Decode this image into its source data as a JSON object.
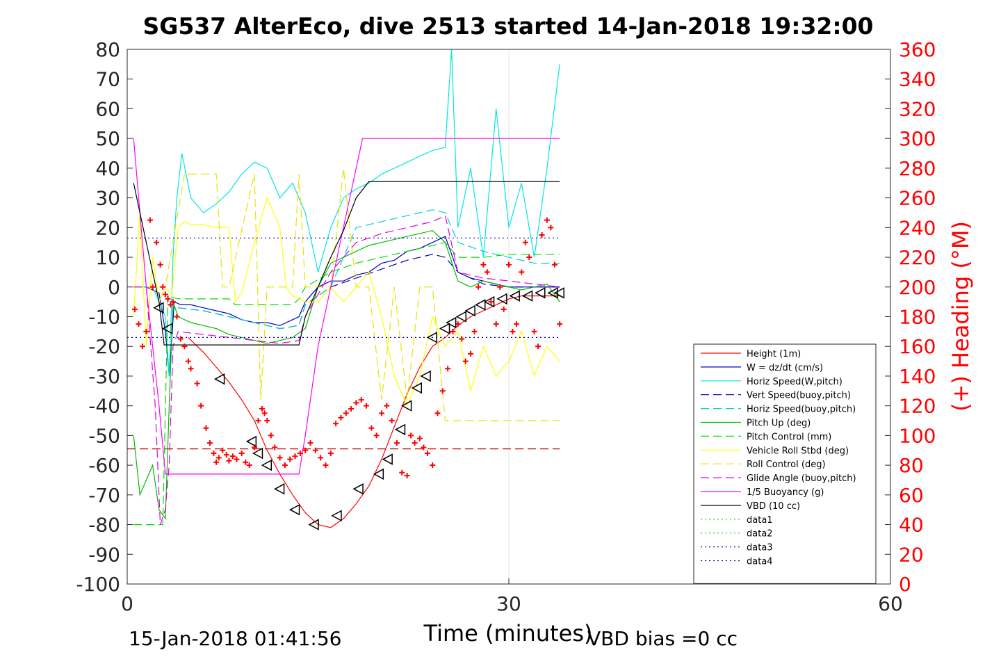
{
  "chart_data": {
    "type": "line",
    "title": "SG537 AlterEco, dive 2513 started 14-Jan-2018 19:32:00",
    "xlabel": "Time (minutes)",
    "ylabel_right": "(+) Heading (°M)",
    "footer_left": "15-Jan-2018 01:41:56",
    "footer_right": "VBD bias =0 cc",
    "xlim": [
      0,
      60
    ],
    "ylim_left": [
      -100,
      80
    ],
    "ylim_right": [
      0,
      360
    ],
    "x_ticks": [
      0,
      30,
      60
    ],
    "x_tick_labels": [
      "0",
      "30",
      "60"
    ],
    "y_left_ticks": [
      80,
      70,
      60,
      50,
      40,
      30,
      20,
      10,
      0,
      -10,
      -20,
      -30,
      -40,
      -50,
      -60,
      -70,
      -80,
      -90,
      -100
    ],
    "y_left_tick_labels": [
      "80",
      "70",
      "60",
      "50",
      "40",
      "30",
      "20",
      "10",
      "0",
      "-10",
      "-20",
      "-30",
      "-40",
      "-50",
      "-60",
      "-70",
      "-80",
      "-90",
      "-100"
    ],
    "y_right_ticks": [
      360,
      340,
      320,
      300,
      280,
      260,
      240,
      220,
      200,
      180,
      160,
      140,
      120,
      100,
      80,
      60,
      40,
      20,
      0
    ],
    "y_right_tick_labels": [
      "360",
      "340",
      "320",
      "300",
      "280",
      "260",
      "240",
      "220",
      "200",
      "180",
      "160",
      "140",
      "120",
      "100",
      "80",
      "60",
      "40",
      "20",
      "0"
    ],
    "grid": "x at 30",
    "legend_position": "bottom-right",
    "series": [
      {
        "name": "Height (1m)",
        "color": "#ff0000",
        "style": "solid",
        "x": [
          4.8,
          6.0,
          7.0,
          8.0,
          9.0,
          10.0,
          11.0,
          12.0,
          13.0,
          14.0,
          15.0,
          16.0,
          17.0,
          18.0,
          19.0,
          20.0,
          21.0,
          22.0,
          23.0,
          24.0,
          25.0,
          25.5,
          26.0,
          27.0,
          28.0,
          29.0,
          30.0,
          31.0,
          32.0,
          33.0,
          34.0
        ],
        "y": [
          -17,
          -22,
          -27,
          -32,
          -38,
          -45,
          -55,
          -63,
          -70,
          -76,
          -80,
          -81,
          -78,
          -73,
          -67,
          -58,
          -47,
          -36,
          -27,
          -20,
          -17,
          -15,
          -13,
          -10,
          -8,
          -6,
          -4,
          -3,
          -3,
          -3,
          -3
        ]
      },
      {
        "name": "W = dz/dt (cm/s)",
        "color": "#0000cc",
        "style": "solid",
        "x": [
          0.5,
          1.5,
          2.5,
          3.0,
          3.3,
          3.7,
          4.2,
          5.0,
          6.0,
          7.0,
          8.0,
          9.0,
          10.0,
          11.0,
          12.0,
          13.0,
          13.5,
          14.0,
          15.0,
          16.0,
          17.0,
          18.0,
          19.0,
          20.0,
          21.0,
          22.0,
          23.0,
          24.0,
          25.0,
          26.0,
          27.0,
          28.0,
          29.0,
          30.0,
          31.0,
          32.0,
          33.0,
          34.0
        ],
        "y": [
          0,
          0,
          -2,
          -15,
          -30,
          -5,
          -6,
          -6,
          -7,
          -8,
          -9,
          -11,
          -12,
          -12,
          -13,
          -11,
          -10,
          -5,
          0,
          2,
          2,
          4,
          5,
          8,
          9,
          12,
          13,
          15,
          17,
          5,
          3,
          2,
          1,
          0,
          0,
          0,
          0,
          0
        ]
      },
      {
        "name": "Horiz Speed(W,pitch)",
        "color": "#00e5e5",
        "style": "solid",
        "x": [
          0.5,
          2.0,
          3.0,
          3.3,
          3.6,
          3.9,
          4.3,
          5.0,
          6.0,
          7.0,
          8.0,
          9.0,
          10.0,
          11.0,
          12.0,
          13.0,
          14.0,
          15.0,
          16.0,
          17.0,
          18.0,
          19.0,
          20.0,
          21.0,
          22.0,
          23.0,
          24.0,
          25.0,
          25.5,
          26.0,
          27.0,
          28.0,
          29.0,
          30.0,
          31.0,
          32.0,
          33.0,
          34.0
        ],
        "y": [
          0,
          0,
          -10,
          -30,
          10,
          30,
          45,
          30,
          25,
          28,
          32,
          38,
          42,
          40,
          30,
          35,
          25,
          5,
          20,
          30,
          33,
          35,
          38,
          40,
          42,
          44,
          46,
          47,
          80,
          20,
          40,
          10,
          60,
          20,
          35,
          10,
          40,
          75
        ]
      },
      {
        "name": "Vert Speed(buoy,pitch)",
        "color": "#0000aa",
        "style": "dashed",
        "x": [
          4.0,
          6.0,
          8.0,
          10.0,
          12.0,
          13.5,
          14.0,
          16.0,
          18.0,
          20.0,
          22.0,
          24.0,
          25.0,
          26.0,
          28.0,
          30.0,
          32.0,
          34.0
        ],
        "y": [
          -7,
          -8,
          -10,
          -12,
          -14,
          -13,
          -6,
          0,
          3,
          6,
          9,
          11,
          10,
          5,
          1,
          0,
          0,
          0
        ]
      },
      {
        "name": "Horiz Speed(buoy,pitch)",
        "color": "#00d0d0",
        "style": "dashed",
        "x": [
          4.0,
          6.0,
          8.0,
          10.0,
          12.0,
          13.5,
          14.0,
          16.0,
          18.0,
          20.0,
          22.0,
          24.0,
          25.0,
          26.0,
          28.0,
          30.0,
          32.0,
          34.0
        ],
        "y": [
          -7,
          -8,
          -10,
          -12,
          -14,
          -13,
          -6,
          0,
          20,
          22,
          24,
          26,
          25,
          15,
          12,
          10,
          8,
          8
        ]
      },
      {
        "name": "Pitch Up (deg)",
        "color": "#00bb00",
        "style": "solid",
        "x": [
          0.5,
          1.0,
          2.0,
          2.5,
          3.0,
          3.3,
          3.6,
          4.0,
          5.0,
          6.0,
          7.0,
          8.0,
          9.0,
          10.0,
          11.0,
          12.0,
          13.0,
          14.0,
          15.0,
          16.0,
          17.0,
          18.0,
          19.0,
          20.0,
          21.0,
          22.0,
          23.0,
          24.0,
          25.0,
          26.0,
          27.0,
          28.0,
          29.0,
          30.0,
          31.0,
          32.0,
          33.0,
          34.0
        ],
        "y": [
          -50,
          -70,
          -60,
          -75,
          -78,
          -40,
          -5,
          -10,
          -12,
          -13,
          -14,
          -16,
          -17,
          -18,
          -19,
          -18,
          -17,
          -14,
          0,
          8,
          10,
          12,
          14,
          15,
          16,
          17,
          18,
          19,
          15,
          2,
          0,
          2,
          1,
          0,
          -1,
          0,
          1,
          -5
        ]
      },
      {
        "name": "Pitch Control (mm)",
        "color": "#00dd00",
        "style": "dashed",
        "x": [
          0.5,
          2.0,
          2.8,
          3.2,
          4.0,
          8.0,
          8.5,
          13.0,
          13.5,
          14.0,
          16.0,
          18.0,
          20.0,
          22.0,
          24.0,
          25.0,
          26.0,
          28.0,
          30.0,
          32.0,
          34.0
        ],
        "y": [
          -80,
          -80,
          -80,
          -3,
          -4,
          -4,
          -6,
          -6,
          -4,
          0,
          5,
          8,
          10,
          12,
          14,
          15,
          10,
          10,
          11,
          11,
          11
        ]
      },
      {
        "name": "Vehicle Roll Stbd (deg)",
        "color": "#ffff00",
        "style": "solid",
        "x": [
          0.5,
          1.0,
          1.5,
          2.0,
          2.5,
          3.0,
          3.5,
          4.0,
          4.5,
          5.0,
          6.0,
          7.0,
          8.0,
          8.5,
          9.0,
          10.0,
          11.0,
          12.0,
          12.5,
          13.0,
          14.0,
          15.0,
          16.0,
          17.0,
          18.0,
          19.0,
          20.0,
          21.0,
          22.0,
          23.0,
          24.0,
          25.0,
          26.0,
          27.0,
          28.0,
          29.0,
          30.0,
          31.0,
          32.0,
          33.0,
          34.0
        ],
        "y": [
          -10,
          25,
          -20,
          10,
          -5,
          0,
          -3,
          20,
          22,
          21,
          21,
          20,
          20,
          -5,
          -2,
          15,
          30,
          20,
          0,
          -3,
          -5,
          -5,
          0,
          -5,
          0,
          5,
          -10,
          -30,
          -40,
          -30,
          -10,
          -20,
          -15,
          -35,
          -20,
          -30,
          -25,
          -15,
          -30,
          -20,
          -25
        ]
      },
      {
        "name": "Roll Control (deg)",
        "color": "#e5e500",
        "style": "dashed",
        "x": [
          0.5,
          2.0,
          3.0,
          4.5,
          5.0,
          7.0,
          7.5,
          8.0,
          10.0,
          10.5,
          11.0,
          12.0,
          13.0,
          13.5,
          14.0,
          16.0,
          17.0,
          18.0,
          19.0,
          20.0,
          21.0,
          22.0,
          23.0,
          24.0,
          25.0,
          26.0,
          27.0,
          28.0,
          29.0,
          30.0,
          31.0,
          32.0,
          33.0,
          34.0
        ],
        "y": [
          0,
          0,
          0,
          38,
          38,
          38,
          0,
          0,
          38,
          -38,
          0,
          0,
          0,
          38,
          0,
          0,
          40,
          0,
          0,
          -38,
          0,
          -38,
          0,
          0,
          -45,
          -45,
          -45,
          -45,
          -45,
          -45,
          -45,
          -45,
          -45,
          -45
        ]
      },
      {
        "name": "Glide Angle (buoy,pitch)",
        "color": "#dd00dd",
        "style": "dashed",
        "x": [
          0.5,
          1.5,
          2.2,
          2.6,
          3.0,
          3.3,
          3.6,
          4.0,
          6.0,
          8.0,
          10.0,
          12.0,
          13.5,
          14.0,
          16.0,
          18.0,
          20.0,
          22.0,
          24.0,
          25.0,
          26.0,
          28.0,
          30.0,
          32.0,
          34.0
        ],
        "y": [
          0,
          0,
          -40,
          -80,
          -75,
          -60,
          -20,
          -15,
          -16,
          -17,
          -18,
          -19,
          -18,
          -10,
          5,
          15,
          18,
          20,
          22,
          24,
          5,
          3,
          2,
          1,
          0
        ]
      },
      {
        "name": "1/5 Buoyancy (g)",
        "color": "#ff00ff",
        "style": "solid",
        "x": [
          0.5,
          1.5,
          2.5,
          3.0,
          3.5,
          4.0,
          6.0,
          8.0,
          10.0,
          12.0,
          13.5,
          14.0,
          15.0,
          16.0,
          17.0,
          18.0,
          18.5,
          19.0,
          22.0,
          25.0,
          28.0,
          31.0,
          34.0
        ],
        "y": [
          50,
          0,
          -40,
          -63,
          -63,
          -63,
          -63,
          -63,
          -63,
          -63,
          -63,
          -50,
          -20,
          0,
          20,
          40,
          50,
          50,
          50,
          50,
          50,
          50,
          50
        ]
      },
      {
        "name": "VBD (10 cc)",
        "color": "#000000",
        "style": "solid",
        "x": [
          0.5,
          1.5,
          2.5,
          2.9,
          3.5,
          8.0,
          12.0,
          13.5,
          14.0,
          15.0,
          16.0,
          17.0,
          18.0,
          19.0,
          22.0,
          25.0,
          28.0,
          31.0,
          34.0
        ],
        "y": [
          35,
          15,
          -5,
          -19.5,
          -19.5,
          -19.5,
          -19.5,
          -19.5,
          -10,
          0,
          10,
          19,
          30,
          35.5,
          35.5,
          35.5,
          35.5,
          35.5,
          35.5
        ]
      },
      {
        "name": "data1",
        "color": "#00cc00",
        "style": "dotted",
        "x": [],
        "y": []
      },
      {
        "name": "data2",
        "color": "#00cc00",
        "style": "dotted",
        "x": [],
        "y": []
      },
      {
        "name": "data3",
        "color": "#0000aa",
        "style": "dotted",
        "x": [
          0,
          34
        ],
        "y": [
          16.5,
          16.5
        ]
      },
      {
        "name": "data4",
        "color": "#0000aa",
        "style": "dotted",
        "x": [
          0,
          34
        ],
        "y": [
          -17,
          -17
        ]
      }
    ],
    "reference_lines": [
      {
        "y": -54.5,
        "color": "#cc0000",
        "style": "dashed",
        "x": [
          0,
          34
        ]
      }
    ],
    "heading_points": {
      "color": "#ff0000",
      "marker": "+",
      "axis": "right",
      "x": [
        0.6,
        0.9,
        1.2,
        1.5,
        1.8,
        2.0,
        2.3,
        2.6,
        2.8,
        3.0,
        3.2,
        3.4,
        3.6,
        3.9,
        4.2,
        4.5,
        4.8,
        5.0,
        5.5,
        5.8,
        6.2,
        6.5,
        6.8,
        7.0,
        7.2,
        7.5,
        7.8,
        8.0,
        8.3,
        8.6,
        9.0,
        9.3,
        9.6,
        10.0,
        10.3,
        10.6,
        10.8,
        11.0,
        11.3,
        11.6,
        12.0,
        12.4,
        12.8,
        13.2,
        13.6,
        14.0,
        14.4,
        14.8,
        15.2,
        15.6,
        16.0,
        16.4,
        16.8,
        17.2,
        17.6,
        18.0,
        18.4,
        18.8,
        19.2,
        19.6,
        20.0,
        20.4,
        20.8,
        21.2,
        21.6,
        22.0,
        22.3,
        22.6,
        23.0,
        23.3,
        23.6,
        24.0,
        24.4,
        24.8,
        25.2,
        25.6,
        26.0,
        26.3,
        26.6,
        27.0,
        27.3,
        27.6,
        28.0,
        28.3,
        28.6,
        29.0,
        29.3,
        29.6,
        30.0,
        30.3,
        30.6,
        31.0,
        31.3,
        31.6,
        32.0,
        32.3,
        32.6,
        33.0,
        33.3,
        33.6,
        34.0
      ],
      "y": [
        185,
        175,
        160,
        170,
        245,
        200,
        230,
        215,
        200,
        195,
        192,
        188,
        190,
        180,
        165,
        160,
        150,
        145,
        135,
        120,
        105,
        95,
        88,
        82,
        85,
        90,
        87,
        83,
        86,
        84,
        88,
        82,
        80,
        92,
        110,
        118,
        115,
        110,
        100,
        92,
        85,
        80,
        84,
        86,
        88,
        90,
        95,
        90,
        85,
        80,
        88,
        108,
        112,
        115,
        118,
        122,
        124,
        120,
        105,
        100,
        115,
        120,
        110,
        95,
        75,
        73,
        100,
        95,
        98,
        92,
        88,
        80,
        115,
        130,
        145,
        170,
        175,
        165,
        150,
        155,
        170,
        200,
        215,
        210,
        190,
        175,
        200,
        185,
        215,
        170,
        175,
        210,
        230,
        220,
        170,
        160,
        235,
        245,
        240,
        215,
        175
      ]
    },
    "position_markers": {
      "color": "#000000",
      "marker": "triangle",
      "x": [
        2.5,
        3.2,
        7.3,
        9.8,
        10.3,
        11.0,
        12.0,
        13.2,
        14.7,
        16.5,
        18.2,
        19.8,
        20.5,
        21.5,
        22.0,
        22.8,
        23.5,
        24.0,
        25.0,
        25.5,
        26.3,
        27.0,
        27.8,
        28.5,
        29.5,
        30.5,
        31.5,
        32.5,
        33.5,
        34.0
      ],
      "y": [
        -7,
        -14,
        -31,
        -52,
        -56,
        -60,
        -68,
        -75,
        -80,
        -77,
        -68,
        -63,
        -58,
        -48,
        -40,
        -34,
        -30,
        -17,
        -14,
        -12,
        -10,
        -8,
        -6,
        -5,
        -4,
        -3,
        -3,
        -2,
        -2,
        -2
      ]
    }
  }
}
